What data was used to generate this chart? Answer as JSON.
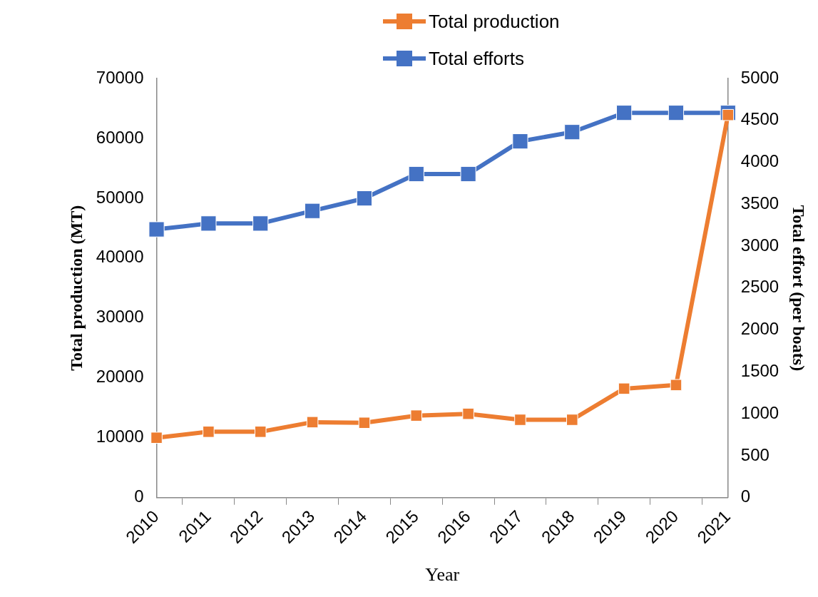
{
  "chart_data": {
    "type": "line",
    "xlabel": "Year",
    "ylabel": "Total production (MT)",
    "y2label": "Total effort (per boats)",
    "categories": [
      "2010",
      "2011",
      "2012",
      "2013",
      "2014",
      "2015",
      "2016",
      "2017",
      "2018",
      "2019",
      "2020",
      "2021"
    ],
    "series": [
      {
        "name": "Total production",
        "color": "#ed7d31",
        "values": [
          10000,
          11000,
          11000,
          12600,
          12500,
          13700,
          14000,
          13000,
          13000,
          18200,
          18800,
          63900
        ]
      },
      {
        "name": "Total efforts",
        "color": "#4472c4",
        "axis": "y2",
        "values": [
          3200,
          3270,
          3270,
          3420,
          3570,
          3860,
          3860,
          4250,
          4360,
          4590,
          4590,
          4590
        ]
      }
    ],
    "ylim": [
      0,
      70000
    ],
    "yticks": [
      0,
      10000,
      20000,
      30000,
      40000,
      50000,
      60000,
      70000
    ],
    "y2lim": [
      0,
      5000
    ],
    "y2ticks": [
      0,
      500,
      1000,
      1500,
      2000,
      2500,
      3000,
      3500,
      4000,
      4500,
      5000
    ],
    "legend": "top",
    "grid": false,
    "marker": "square",
    "line_style": "solid"
  }
}
